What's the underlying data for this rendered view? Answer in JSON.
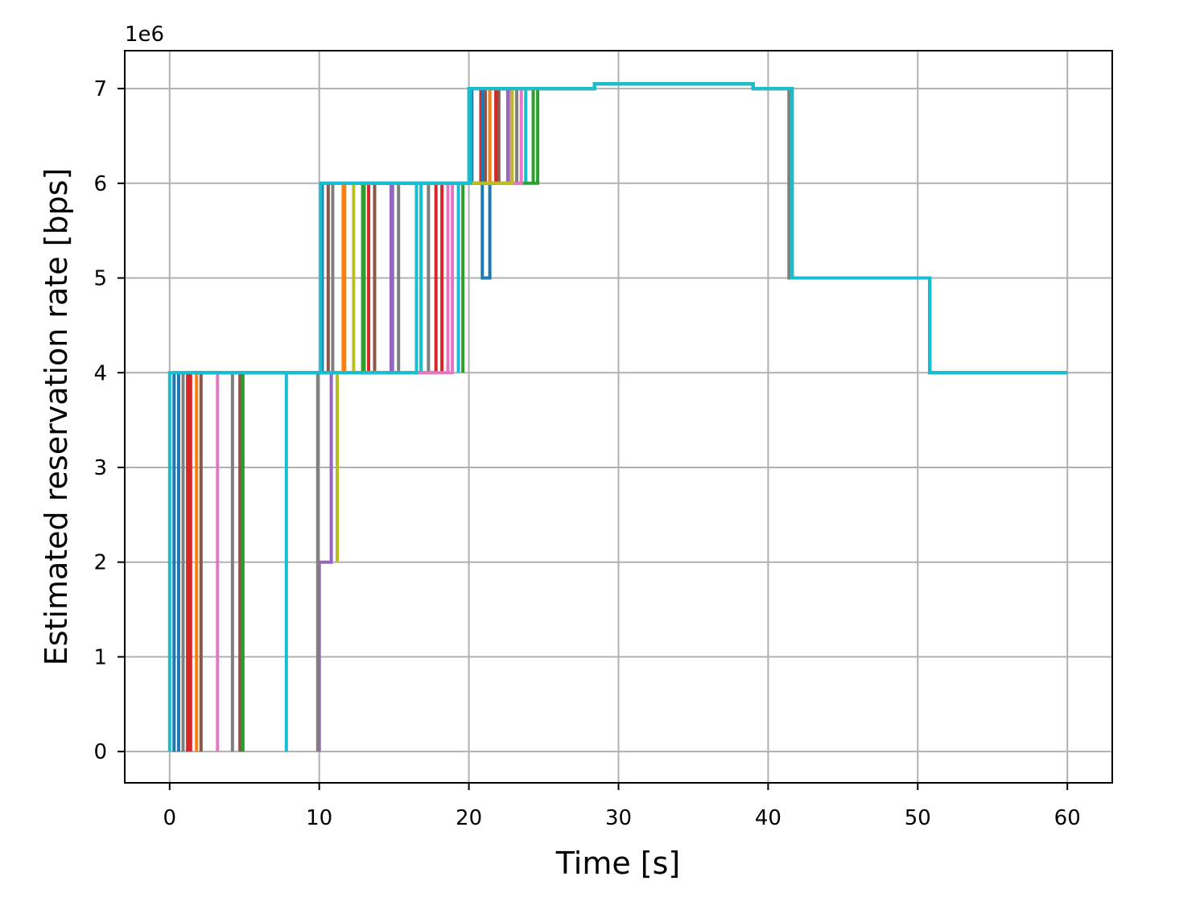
{
  "chart_data": {
    "type": "line",
    "step": true,
    "title": "",
    "xlabel": "Time [s]",
    "ylabel": "Estimated reservation rate [bps]",
    "y_offset_label": "1e6",
    "xlim": [
      -3,
      63
    ],
    "ylim": [
      -0.33,
      7.4
    ],
    "xticks": [
      0,
      10,
      20,
      30,
      40,
      50,
      60
    ],
    "xtick_labels": [
      "0",
      "10",
      "20",
      "30",
      "40",
      "50",
      "60"
    ],
    "yticks": [
      0,
      1,
      2,
      3,
      4,
      5,
      6,
      7
    ],
    "ytick_labels": [
      "0",
      "1",
      "2",
      "3",
      "4",
      "5",
      "6",
      "7"
    ],
    "grid": true,
    "legend": "none",
    "series": [
      {
        "color": "#1f77b4",
        "x": [
          0.3,
          0.3,
          10.2,
          10.2,
          20.2,
          20.2,
          20.9,
          20.9,
          21.4,
          21.4,
          28.4,
          28.4,
          39,
          39,
          41.6,
          41.6,
          50.8,
          50.8,
          60
        ],
        "y": [
          0,
          4,
          4,
          6,
          6,
          7,
          7,
          5,
          5,
          7,
          7,
          7.05,
          7.05,
          7,
          7,
          5,
          5,
          4,
          4
        ]
      },
      {
        "color": "#ff7f0e",
        "x": [
          1.8,
          1.8,
          11.6,
          11.6,
          21.4,
          21.4,
          28.4,
          28.4,
          39,
          39,
          41.6,
          41.6,
          50.8,
          50.8,
          60
        ],
        "y": [
          0,
          4,
          4,
          6,
          6,
          7,
          7,
          7.05,
          7.05,
          7,
          7,
          5,
          5,
          4,
          4
        ]
      },
      {
        "color": "#2ca02c",
        "x": [
          4.9,
          4.9,
          13.0,
          13.0,
          24.6,
          24.6,
          28.4,
          28.4,
          39,
          39,
          41.6,
          41.6,
          50.8,
          50.8,
          60
        ],
        "y": [
          0,
          4,
          4,
          6,
          6,
          7,
          7,
          7.05,
          7.05,
          7,
          7,
          5,
          5,
          4,
          4
        ]
      },
      {
        "color": "#d62728",
        "x": [
          1.2,
          1.2,
          17.8,
          17.8,
          21.8,
          21.8,
          28.4,
          28.4,
          39,
          39,
          41.6,
          41.6,
          50.8,
          50.8,
          60
        ],
        "y": [
          0,
          4,
          4,
          6,
          6,
          7,
          7,
          7.05,
          7.05,
          7,
          7,
          5,
          5,
          4,
          4
        ]
      },
      {
        "color": "#9467bd",
        "x": [
          10.0,
          10.0,
          10.8,
          10.8,
          14.9,
          14.9,
          22.6,
          22.6,
          28.4,
          28.4,
          39,
          39,
          41.6,
          41.6,
          50.8,
          50.8,
          60
        ],
        "y": [
          0,
          2,
          2,
          4,
          4,
          6,
          6,
          7,
          7,
          7.05,
          7.05,
          7,
          7,
          5,
          5,
          4,
          4
        ]
      },
      {
        "color": "#8c564b",
        "x": [
          2.1,
          2.1,
          13.7,
          13.7,
          21.1,
          21.1,
          28.4,
          28.4,
          39,
          39,
          41.4,
          41.4,
          50.8,
          50.8,
          60
        ],
        "y": [
          0,
          4,
          4,
          6,
          6,
          7,
          7,
          7.05,
          7.05,
          7,
          7,
          5,
          5,
          4,
          4
        ]
      },
      {
        "color": "#e377c2",
        "x": [
          3.2,
          3.2,
          18.9,
          18.9,
          23.5,
          23.5,
          28.4,
          28.4,
          39,
          39,
          41.6,
          41.6,
          50.8,
          50.8,
          60
        ],
        "y": [
          0,
          4,
          4,
          6,
          6,
          7,
          7,
          7.05,
          7.05,
          7,
          7,
          5,
          5,
          4,
          4
        ]
      },
      {
        "color": "#7f7f7f",
        "x": [
          9.9,
          9.9,
          15.3,
          15.3,
          20.1,
          20.1,
          28.4,
          28.4,
          39,
          39,
          41.4,
          41.4,
          50.8,
          50.8,
          60
        ],
        "y": [
          0,
          4,
          4,
          6,
          6,
          7,
          7,
          7.05,
          7.05,
          7,
          7,
          5,
          5,
          4,
          4
        ]
      },
      {
        "color": "#bcbd22",
        "x": [
          11.2,
          11.2,
          12.3,
          12.3,
          22.9,
          22.9,
          28.4,
          28.4,
          39,
          39,
          41.6,
          41.6,
          50.8,
          50.8,
          60
        ],
        "y": [
          2,
          4,
          4,
          6,
          6,
          7,
          7,
          7.05,
          7.05,
          7,
          7,
          5,
          5,
          4,
          4
        ]
      },
      {
        "color": "#17becf",
        "x": [
          7.8,
          7.8,
          10.1,
          10.1,
          20.0,
          20.0,
          28.4,
          28.4,
          39,
          39,
          41.6,
          41.6,
          50.8,
          50.8,
          60
        ],
        "y": [
          0,
          4,
          4,
          6,
          6,
          7,
          7,
          7.05,
          7.05,
          7,
          7,
          5,
          5,
          4,
          4
        ]
      },
      {
        "color": "#17becf",
        "x": [
          0,
          0,
          16.5,
          16.5,
          20.1,
          20.1,
          28.4,
          28.4,
          39,
          39,
          41.6,
          41.6,
          50.8,
          50.8,
          60
        ],
        "y": [
          0,
          4,
          4,
          6,
          6,
          7,
          7,
          7.05,
          7.05,
          7,
          7,
          5,
          5,
          4,
          4
        ]
      }
    ],
    "extra_drops": [
      {
        "color": "#1f77b4",
        "x": 0.6,
        "y0": 4,
        "y1": 0
      },
      {
        "color": "#7f7f7f",
        "x": 0.9,
        "y0": 4,
        "y1": 0
      },
      {
        "color": "#d62728",
        "x": 1.4,
        "y0": 4,
        "y1": 0
      },
      {
        "color": "#7f7f7f",
        "x": 4.2,
        "y0": 4,
        "y1": 0
      },
      {
        "color": "#8c564b",
        "x": 4.7,
        "y0": 4,
        "y1": 0
      },
      {
        "color": "#8c564b",
        "x": 10.6,
        "y0": 6,
        "y1": 4
      },
      {
        "color": "#7f7f7f",
        "x": 10.9,
        "y0": 6,
        "y1": 4
      },
      {
        "color": "#ff7f0e",
        "x": 11.7,
        "y0": 6,
        "y1": 4
      },
      {
        "color": "#2ca02c",
        "x": 12.9,
        "y0": 6,
        "y1": 4
      },
      {
        "color": "#d62728",
        "x": 13.3,
        "y0": 6,
        "y1": 4
      },
      {
        "color": "#9467bd",
        "x": 14.8,
        "y0": 6,
        "y1": 4
      },
      {
        "color": "#17becf",
        "x": 16.8,
        "y0": 6,
        "y1": 4
      },
      {
        "color": "#7f7f7f",
        "x": 17.3,
        "y0": 6,
        "y1": 4
      },
      {
        "color": "#d62728",
        "x": 18.2,
        "y0": 6,
        "y1": 4
      },
      {
        "color": "#e377c2",
        "x": 18.6,
        "y0": 6,
        "y1": 4
      },
      {
        "color": "#17becf",
        "x": 19.3,
        "y0": 6,
        "y1": 4
      },
      {
        "color": "#2ca02c",
        "x": 19.6,
        "y0": 6,
        "y1": 4
      },
      {
        "color": "#d62728",
        "x": 20.8,
        "y0": 7,
        "y1": 6
      },
      {
        "color": "#8c564b",
        "x": 22.0,
        "y0": 7,
        "y1": 6
      },
      {
        "color": "#e377c2",
        "x": 22.8,
        "y0": 7,
        "y1": 6
      },
      {
        "color": "#7f7f7f",
        "x": 23.2,
        "y0": 7,
        "y1": 6
      },
      {
        "color": "#17becf",
        "x": 23.8,
        "y0": 7,
        "y1": 6
      },
      {
        "color": "#2ca02c",
        "x": 24.3,
        "y0": 7,
        "y1": 6
      }
    ]
  }
}
